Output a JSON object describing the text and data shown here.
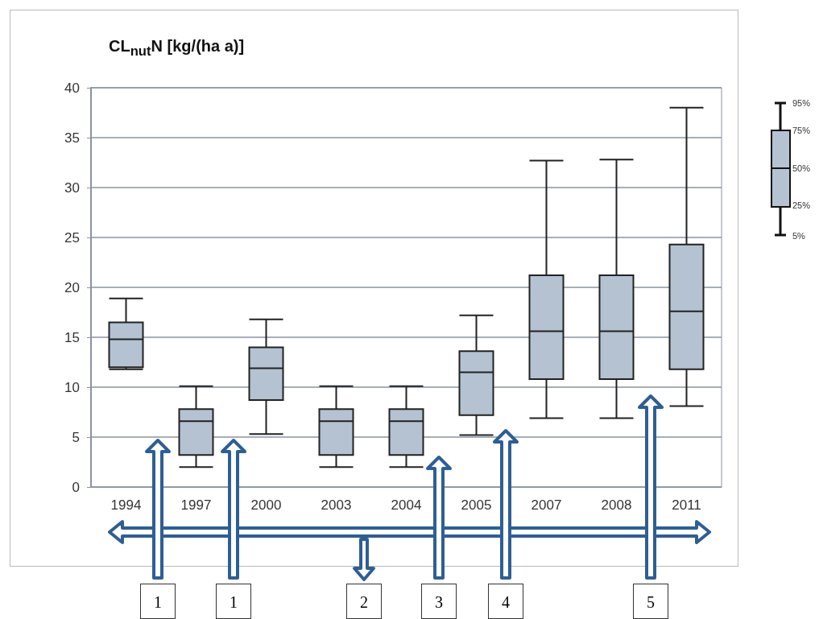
{
  "chart_data": {
    "type": "box",
    "title": "CL$_{nut}$N [kg/(ha a)]",
    "categories": [
      "1994",
      "1997",
      "2000",
      "2003",
      "2004",
      "2005",
      "2007",
      "2008",
      "2011"
    ],
    "boxes": [
      {
        "low": 11.8,
        "q1": 12.0,
        "median": 14.8,
        "q3": 16.5,
        "high": 18.9
      },
      {
        "low": 2.0,
        "q1": 3.2,
        "median": 6.6,
        "q3": 7.8,
        "high": 10.1
      },
      {
        "low": 5.3,
        "q1": 8.7,
        "median": 11.9,
        "q3": 14.0,
        "high": 16.8
      },
      {
        "low": 2.0,
        "q1": 3.2,
        "median": 6.6,
        "q3": 7.8,
        "high": 10.1
      },
      {
        "low": 2.0,
        "q1": 3.2,
        "median": 6.6,
        "q3": 7.8,
        "high": 10.1
      },
      {
        "low": 5.2,
        "q1": 7.2,
        "median": 11.5,
        "q3": 13.6,
        "high": 17.2
      },
      {
        "low": 6.9,
        "q1": 10.8,
        "median": 15.6,
        "q3": 21.2,
        "high": 32.7
      },
      {
        "low": 6.9,
        "q1": 10.8,
        "median": 15.6,
        "q3": 21.2,
        "high": 32.8
      },
      {
        "low": 8.1,
        "q1": 11.8,
        "median": 17.6,
        "q3": 24.3,
        "high": 38.0
      }
    ],
    "color": "#b4c2d2",
    "ylim": [
      0,
      40
    ],
    "yticks": [
      0,
      5,
      10,
      15,
      20,
      25,
      30,
      35,
      40
    ],
    "grid": "y",
    "annotations": [
      "95%",
      "75%",
      "50%",
      "25%",
      "5%",
      "1",
      "1",
      "2",
      "3",
      "4",
      "5"
    ]
  }
}
